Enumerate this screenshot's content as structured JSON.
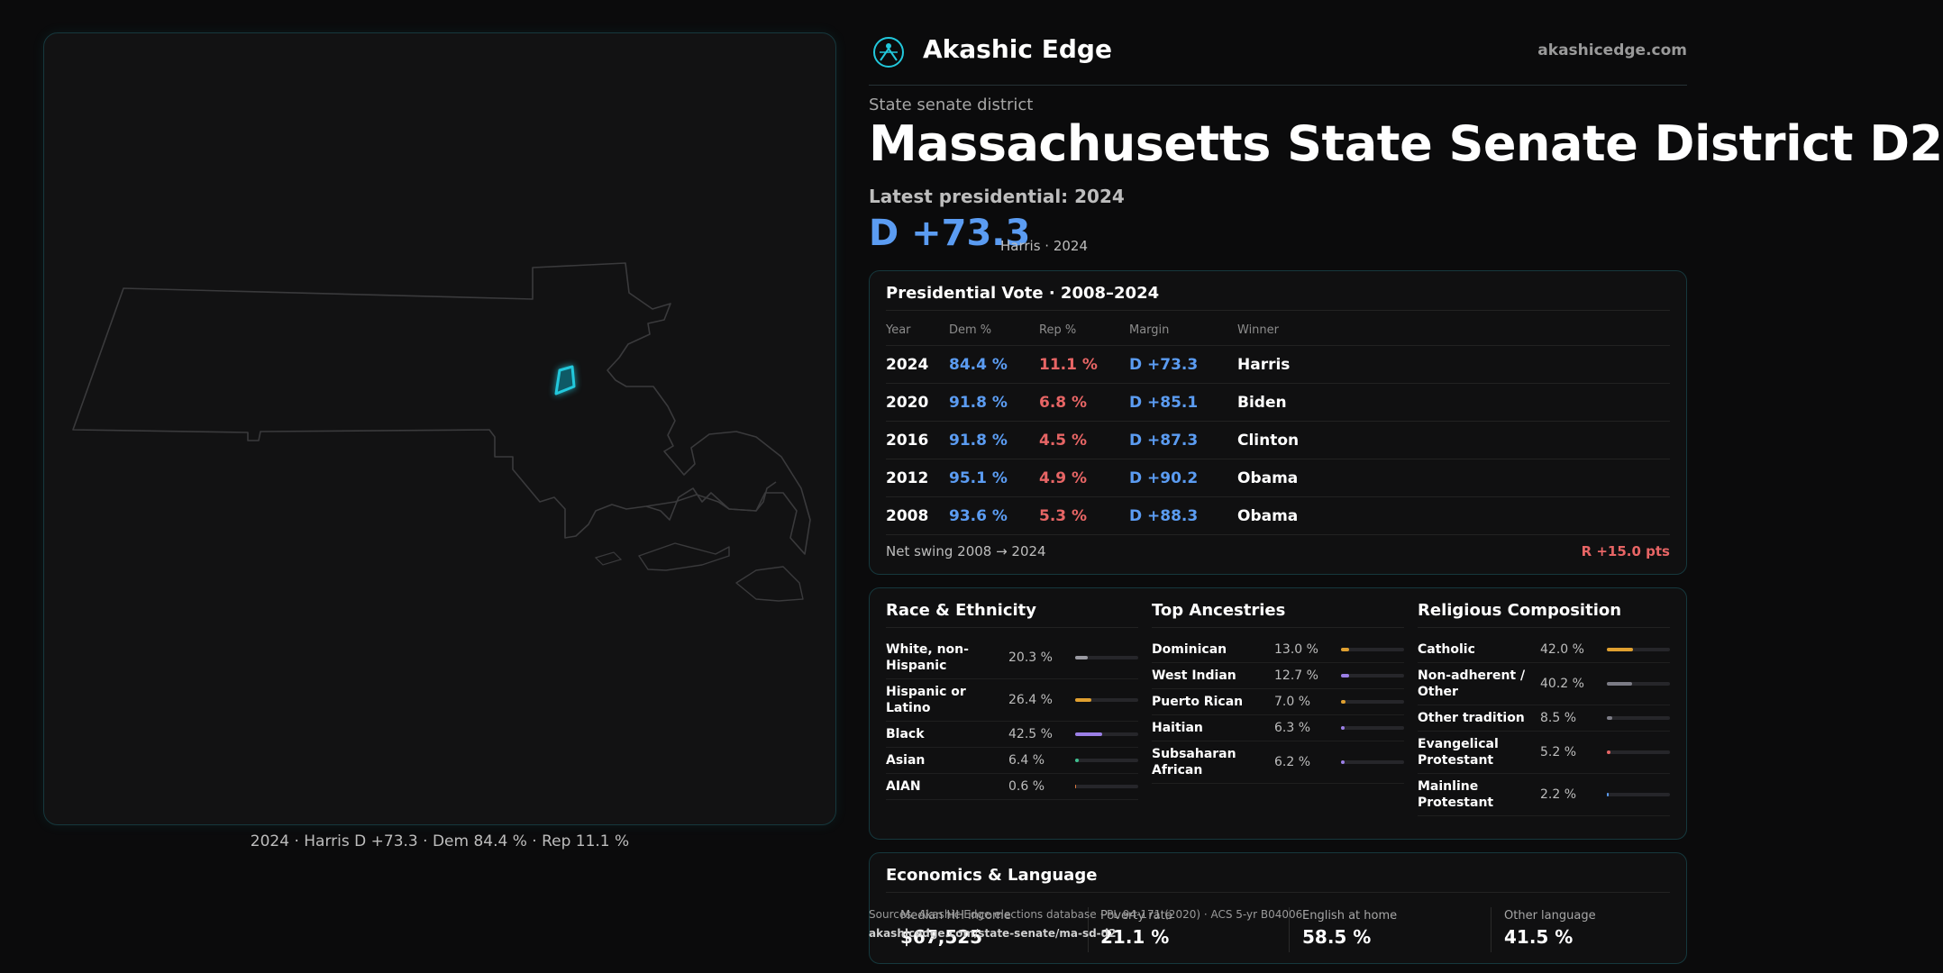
{
  "brand": {
    "name": "Akashic Edge",
    "url": "akashicedge.com"
  },
  "header": {
    "kicker": "State senate district",
    "title": "Massachusetts State Senate District D2",
    "latest": "Latest presidential: 2024",
    "margin": "D +73.3",
    "margin_sub": "Harris · 2024"
  },
  "map": {
    "caption": "2024 · Harris D +73.3 · Dem 84.4 % · Rep 11.1 %"
  },
  "presidential": {
    "title": "Presidential Vote · 2008–2024",
    "headers": [
      "Year",
      "Dem %",
      "Rep %",
      "Margin",
      "Winner"
    ],
    "rows": [
      [
        "2024",
        "84.4 %",
        "11.1 %",
        "D +73.3",
        "Harris"
      ],
      [
        "2020",
        "91.8 %",
        "6.8 %",
        "D +85.1",
        "Biden"
      ],
      [
        "2016",
        "91.8 %",
        "4.5 %",
        "D +87.3",
        "Clinton"
      ],
      [
        "2012",
        "95.1 %",
        "4.9 %",
        "D +90.2",
        "Obama"
      ],
      [
        "2008",
        "93.6 %",
        "5.3 %",
        "D +88.3",
        "Obama"
      ]
    ],
    "swing_label": "Net swing 2008 → 2024",
    "swing_value": "R +15.0 pts"
  },
  "race": {
    "title": "Race & Ethnicity",
    "items": [
      {
        "label": "White, non-Hispanic",
        "pct": "20.3 %",
        "value": 20.3,
        "color": "#9a9aa2"
      },
      {
        "label": "Hispanic or Latino",
        "pct": "26.4 %",
        "value": 26.4,
        "color": "#e0a030"
      },
      {
        "label": "Black",
        "pct": "42.5 %",
        "value": 42.5,
        "color": "#9b7fe6"
      },
      {
        "label": "Asian",
        "pct": "6.4 %",
        "value": 6.4,
        "color": "#3fbf8f"
      },
      {
        "label": "AIAN",
        "pct": "0.6 %",
        "value": 0.6,
        "color": "#e07a40"
      }
    ]
  },
  "ancestry": {
    "title": "Top Ancestries",
    "items": [
      {
        "label": "Dominican",
        "pct": "13.0 %",
        "value": 13.0,
        "color": "#e0a030"
      },
      {
        "label": "West Indian",
        "pct": "12.7 %",
        "value": 12.7,
        "color": "#9b7fe6"
      },
      {
        "label": "Puerto Rican",
        "pct": "7.0 %",
        "value": 7.0,
        "color": "#e0a030"
      },
      {
        "label": "Haitian",
        "pct": "6.3 %",
        "value": 6.3,
        "color": "#9b7fe6"
      },
      {
        "label": "Subsaharan African",
        "pct": "6.2 %",
        "value": 6.2,
        "color": "#9b7fe6"
      }
    ]
  },
  "religion": {
    "title": "Religious Composition",
    "items": [
      {
        "label": "Catholic",
        "pct": "42.0 %",
        "value": 42.0,
        "color": "#e0a030"
      },
      {
        "label": "Non-adherent / Other",
        "pct": "40.2 %",
        "value": 40.2,
        "color": "#7c7c86"
      },
      {
        "label": "Other tradition",
        "pct": "8.5 %",
        "value": 8.5,
        "color": "#7c7c86"
      },
      {
        "label": "Evangelical Protestant",
        "pct": "5.2 %",
        "value": 5.2,
        "color": "#e76565"
      },
      {
        "label": "Mainline Protestant",
        "pct": "2.2 %",
        "value": 2.2,
        "color": "#5b9cf2"
      }
    ]
  },
  "economics": {
    "title": "Economics & Language",
    "stats": [
      {
        "label": "Median HH income",
        "value": "$67,525"
      },
      {
        "label": "Poverty rate",
        "value": "21.1 %"
      },
      {
        "label": "English at home",
        "value": "58.5 %"
      },
      {
        "label": "Other language",
        "value": "41.5 %"
      }
    ]
  },
  "sources": {
    "text": "Sources: Akashic Edge elections database · PL 94-171 (2020) · ACS 5-yr B04006",
    "url": "akashicedge.com/state-senate/ma-sd-d2"
  },
  "colors": {
    "dem": "#5b9cf2",
    "rep": "#e76565",
    "accent": "#22c8dc"
  }
}
